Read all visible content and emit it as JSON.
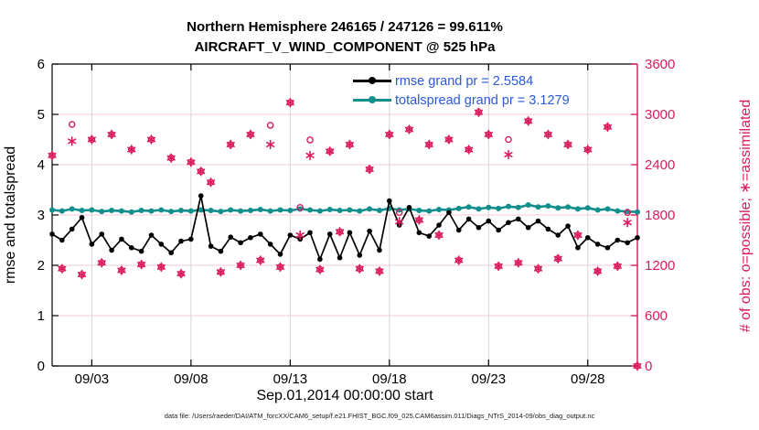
{
  "figure": {
    "title_line1": "Northern Hemisphere 246165 / 247126 = 99.611%",
    "title_line2": "AIRCRAFT_V_WIND_COMPONENT @ 525 hPa",
    "footer": "data file: /Users/raeder/DAI/ATM_forcXX/CAM6_setup/f.e21.FHIST_BGC.f09_025.CAM6assim.011/Diags_NTrS_2014-09/obs_diag_output.nc"
  },
  "colors": {
    "rmse": "#000000",
    "totalspread": "#128F8C",
    "obs": "#D91A5C",
    "legend_text": "#2B59D8",
    "grid_horizontal": "#F5C9D7",
    "grid_vertical": "#DBD3D5",
    "axis_left": "#000000",
    "axis_right": "#D91A5C"
  },
  "legend": {
    "items": [
      {
        "series": "rmse",
        "label": "rmse grand pr = 2.5584"
      },
      {
        "series": "totalspread",
        "label": "totalspread grand pr = 3.1279"
      }
    ]
  },
  "chart_data": {
    "type": "line",
    "x_axis": {
      "label": "Sep.01,2014 00:00:00 start",
      "min": 1,
      "max": 30.5,
      "ticks": [
        3,
        8,
        13,
        18,
        23,
        28
      ],
      "tick_labels": [
        "09/03",
        "09/08",
        "09/13",
        "09/18",
        "09/23",
        "09/28"
      ]
    },
    "left_axis": {
      "label": "rmse and totalspread",
      "min": 0,
      "max": 6,
      "ticks": [
        0,
        1,
        2,
        3,
        4,
        5,
        6
      ]
    },
    "right_axis": {
      "label": "# of obs: o=possible; ∗=assimilated",
      "min": 0,
      "max": 3600,
      "ticks": [
        0,
        600,
        1200,
        1800,
        2400,
        3000,
        3600
      ]
    },
    "x_days": [
      1,
      1.5,
      2,
      2.5,
      3,
      3.5,
      4,
      4.5,
      5,
      5.5,
      6,
      6.5,
      7,
      7.5,
      8,
      8.5,
      9,
      9.5,
      10,
      10.5,
      11,
      11.5,
      12,
      12.5,
      13,
      13.5,
      14,
      14.5,
      15,
      15.5,
      16,
      16.5,
      17,
      17.5,
      18,
      18.5,
      19,
      19.5,
      20,
      20.5,
      21,
      21.5,
      22,
      22.5,
      23,
      23.5,
      24,
      24.5,
      25,
      25.5,
      26,
      26.5,
      27,
      27.5,
      28,
      28.5,
      29,
      29.5,
      30,
      30.5
    ],
    "series": [
      {
        "name": "rmse",
        "grand_pr": 2.5584,
        "axis": "left",
        "values": [
          2.62,
          2.5,
          2.72,
          2.95,
          2.42,
          2.62,
          2.3,
          2.52,
          2.35,
          2.28,
          2.6,
          2.42,
          2.25,
          2.48,
          2.52,
          3.38,
          2.38,
          2.28,
          2.56,
          2.45,
          2.55,
          2.62,
          2.42,
          2.22,
          2.6,
          2.52,
          2.65,
          2.12,
          2.62,
          2.15,
          2.65,
          2.2,
          2.68,
          2.3,
          3.28,
          2.8,
          3.15,
          2.65,
          2.58,
          2.8,
          3.05,
          2.7,
          2.92,
          2.75,
          2.88,
          2.7,
          2.85,
          2.92,
          2.75,
          2.88,
          2.72,
          2.6,
          2.78,
          2.35,
          2.55,
          2.42,
          2.35,
          2.5,
          2.45,
          2.55
        ]
      },
      {
        "name": "totalspread",
        "grand_pr": 3.1279,
        "axis": "left",
        "values": [
          3.1,
          3.08,
          3.12,
          3.09,
          3.1,
          3.07,
          3.09,
          3.08,
          3.06,
          3.09,
          3.08,
          3.1,
          3.07,
          3.09,
          3.08,
          3.1,
          3.09,
          3.07,
          3.1,
          3.08,
          3.09,
          3.11,
          3.08,
          3.1,
          3.09,
          3.12,
          3.1,
          3.08,
          3.11,
          3.09,
          3.1,
          3.08,
          3.12,
          3.09,
          3.13,
          3.1,
          3.12,
          3.09,
          3.08,
          3.11,
          3.1,
          3.13,
          3.16,
          3.12,
          3.15,
          3.13,
          3.17,
          3.15,
          3.2,
          3.16,
          3.18,
          3.14,
          3.16,
          3.12,
          3.14,
          3.1,
          3.12,
          3.08,
          3.07,
          3.06
        ]
      }
    ],
    "scatter": {
      "name": "# of obs",
      "axis": "right",
      "possible": [
        2510,
        1160,
        2880,
        1090,
        2700,
        1230,
        2760,
        1140,
        2580,
        1210,
        2700,
        1180,
        2480,
        1100,
        2430,
        2320,
        2190,
        1120,
        2640,
        1200,
        2760,
        1260,
        2870,
        1180,
        3140,
        1890,
        2695,
        1150,
        2560,
        1600,
        2640,
        1160,
        2345,
        1130,
        2760,
        1830,
        2820,
        1740,
        2640,
        1560,
        2700,
        1260,
        2580,
        3025,
        2760,
        1190,
        2700,
        1230,
        2920,
        1160,
        2760,
        1280,
        2640,
        1560,
        2580,
        1130,
        2850,
        1190,
        1830,
        0
      ],
      "assimilated": [
        2510,
        1160,
        2680,
        1090,
        2700,
        1230,
        2760,
        1140,
        2580,
        1210,
        2700,
        1180,
        2480,
        1100,
        2430,
        2320,
        2190,
        1120,
        2640,
        1200,
        2760,
        1260,
        2640,
        1180,
        3140,
        1560,
        2510,
        1150,
        2560,
        1600,
        2640,
        1160,
        2345,
        1130,
        2760,
        1720,
        2820,
        1740,
        2640,
        1560,
        2700,
        1260,
        2580,
        3025,
        2760,
        1190,
        2520,
        1230,
        2920,
        1160,
        2760,
        1280,
        2640,
        1560,
        2580,
        1130,
        2850,
        1190,
        1710,
        0
      ]
    }
  }
}
